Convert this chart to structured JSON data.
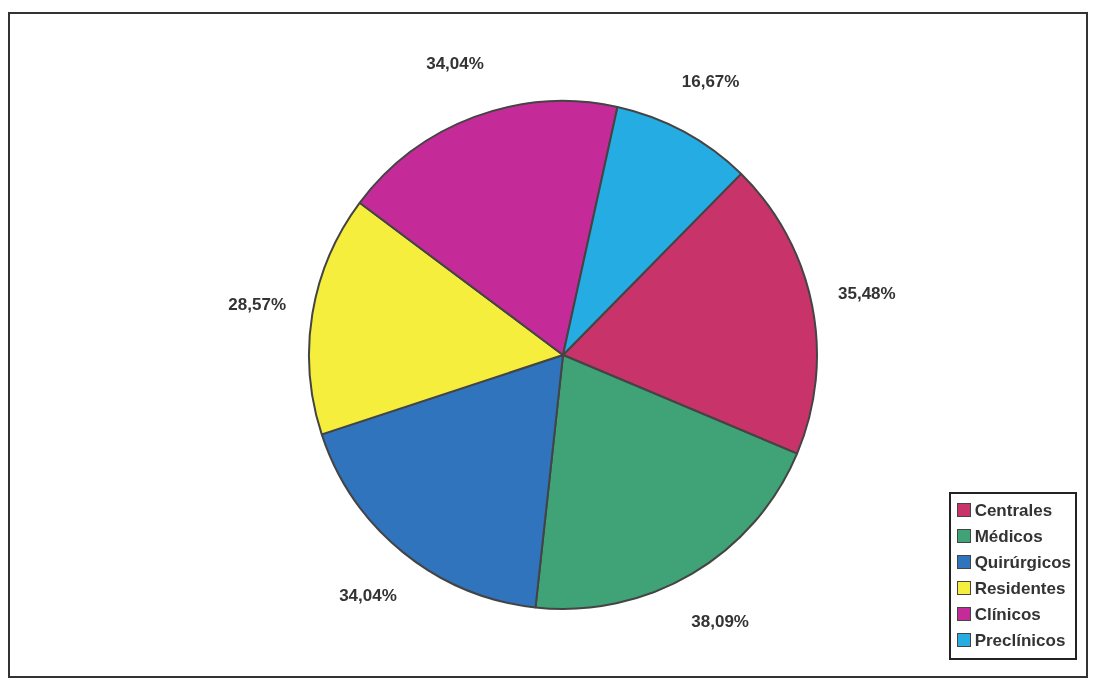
{
  "chart_data": {
    "type": "pie",
    "categories": [
      "Centrales",
      "Médicos",
      "Quirúrgicos",
      "Residentes",
      "Clínicos",
      "Preclínicos"
    ],
    "values": [
      35.48,
      38.09,
      34.04,
      28.57,
      34.04,
      16.67
    ],
    "value_labels": [
      "35,48%",
      "38,09%",
      "34,04%",
      "28,57%",
      "34,04%",
      "16,67%"
    ],
    "colors": [
      "#c8336a",
      "#3fa377",
      "#2f74bd",
      "#f6ee3c",
      "#c52b98",
      "#25ade3"
    ],
    "legend": "bottom right"
  }
}
